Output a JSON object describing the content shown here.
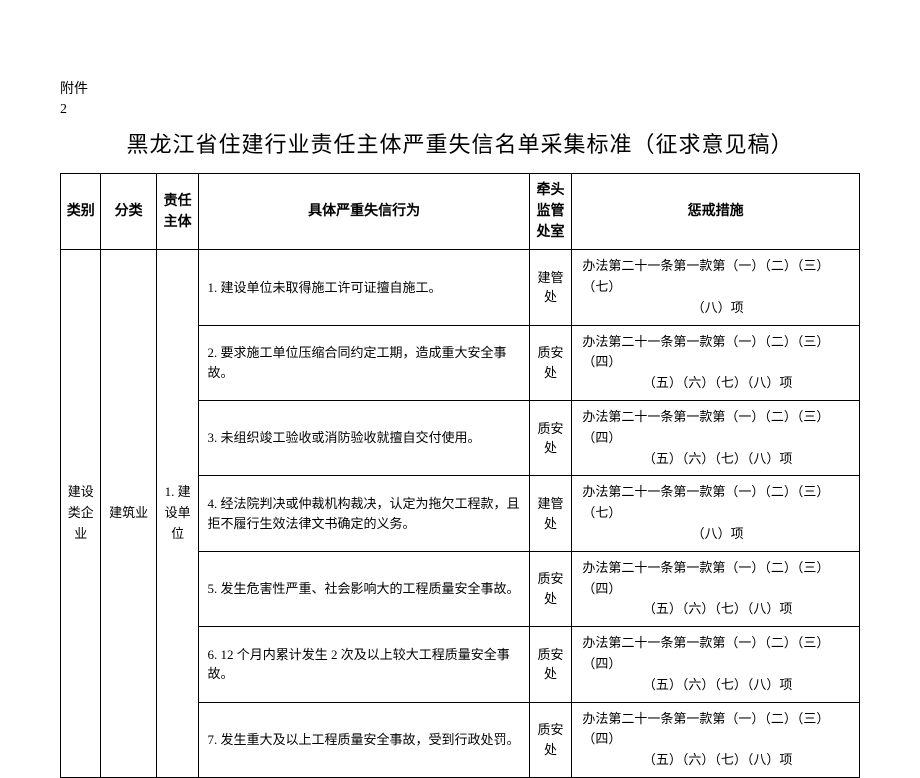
{
  "attachment_label": "附件",
  "attachment_number": "2",
  "title": "黑龙江省住建行业责任主体严重失信名单采集标准（征求意见稿）",
  "headers": {
    "category": "类别",
    "subcategory": "分类",
    "entity": "责任主体",
    "behavior": "具体严重失信行为",
    "department": "牵头监管处室",
    "penalty": "惩戒措施"
  },
  "category_value": "建设类企业",
  "subcategory_value": "建筑业",
  "entity_value": "1. 建设单位",
  "rows": [
    {
      "behavior": "1. 建设单位未取得施工许可证擅自施工。",
      "department": "建管处",
      "penalty_line1": "办法第二十一条第一款第（一）（二）（三）（七）",
      "penalty_line2": "（八）项"
    },
    {
      "behavior": "2. 要求施工单位压缩合同约定工期，造成重大安全事故。",
      "department": "质安处",
      "penalty_line1": "办法第二十一条第一款第（一）（二）（三）（四）",
      "penalty_line2": "（五）（六）（七）（八）项"
    },
    {
      "behavior": "3. 未组织竣工验收或消防验收就擅自交付使用。",
      "department": "质安处",
      "penalty_line1": "办法第二十一条第一款第（一）（二）（三）（四）",
      "penalty_line2": "（五）（六）（七）（八）项"
    },
    {
      "behavior": "4. 经法院判决或仲裁机构裁决，认定为拖欠工程款，且拒不履行生效法律文书确定的义务。",
      "department": "建管处",
      "penalty_line1": "办法第二十一条第一款第（一）（二）（三）（七）",
      "penalty_line2": "（八）项"
    },
    {
      "behavior": "5. 发生危害性严重、社会影响大的工程质量安全事故。",
      "department": "质安处",
      "penalty_line1": "办法第二十一条第一款第（一）（二）（三）（四）",
      "penalty_line2": "（五）（六）（七）（八）项"
    },
    {
      "behavior": "6. 12 个月内累计发生 2 次及以上较大工程质量安全事故。",
      "department": "质安处",
      "penalty_line1": "办法第二十一条第一款第（一）（二）（三）（四）",
      "penalty_line2": "（五）（六）（七）（八）项"
    },
    {
      "behavior": "7. 发生重大及以上工程质量安全事故，受到行政处罚。",
      "department": "质安处",
      "penalty_line1": "办法第二十一条第一款第（一）（二）（三）（四）",
      "penalty_line2": "（五）（六）（七）（八）项"
    }
  ]
}
